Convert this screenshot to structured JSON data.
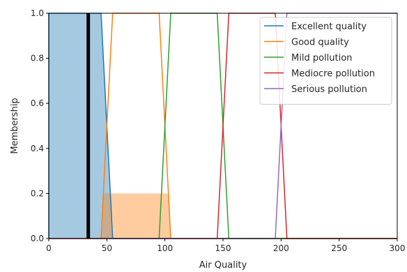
{
  "chart_data": {
    "type": "line",
    "title": "",
    "xlabel": "Air Quality",
    "ylabel": "Membership",
    "xlim": [
      0,
      300
    ],
    "ylim": [
      0,
      1
    ],
    "x_ticks": [
      0,
      50,
      100,
      150,
      200,
      250,
      300
    ],
    "y_ticks": [
      0.0,
      0.2,
      0.4,
      0.6,
      0.8,
      1.0
    ],
    "x_tick_labels": [
      "0",
      "50",
      "100",
      "150",
      "200",
      "250",
      "300"
    ],
    "y_tick_labels": [
      "0.0",
      "0.2",
      "0.4",
      "0.6",
      "0.8",
      "1.0"
    ],
    "grid": false,
    "legend_position": "top-right",
    "series": [
      {
        "name": "Excellent quality",
        "color": "#1f77b4",
        "x": [
          0,
          0,
          45,
          55,
          300
        ],
        "y": [
          0,
          1,
          1,
          0,
          0
        ]
      },
      {
        "name": "Good quality",
        "color": "#ff7f0e",
        "x": [
          0,
          45,
          55,
          95,
          105,
          300
        ],
        "y": [
          0,
          0,
          1,
          1,
          0,
          0
        ]
      },
      {
        "name": "Mild pollution",
        "color": "#2ca02c",
        "x": [
          0,
          95,
          105,
          145,
          155,
          300
        ],
        "y": [
          0,
          0,
          1,
          1,
          0,
          0
        ]
      },
      {
        "name": "Mediocre pollution",
        "color": "#d62728",
        "x": [
          0,
          145,
          155,
          195,
          205,
          300
        ],
        "y": [
          0,
          0,
          1,
          1,
          0,
          0
        ]
      },
      {
        "name": "Serious pollution",
        "color": "#9467bd",
        "x": [
          0,
          195,
          205,
          300
        ],
        "y": [
          0,
          0,
          1,
          1
        ]
      }
    ],
    "filled_regions": [
      {
        "color": "#1f77b4",
        "opacity": 0.4,
        "x": [
          0,
          0,
          45,
          55
        ],
        "y": [
          0,
          1,
          1,
          0
        ]
      },
      {
        "color": "#ff7f0e",
        "opacity": 0.4,
        "x": [
          45,
          47,
          103,
          105
        ],
        "y": [
          0,
          0.2,
          0.2,
          0
        ]
      }
    ],
    "marker_line": {
      "x": 34,
      "y": [
        0,
        1
      ],
      "color": "#000000"
    }
  }
}
